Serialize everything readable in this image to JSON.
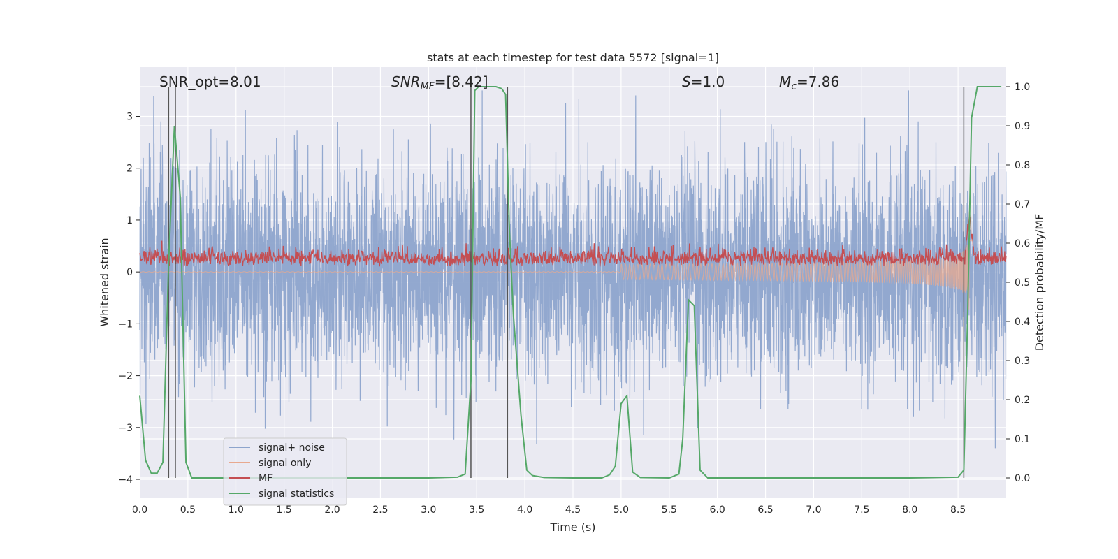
{
  "chart_data": {
    "type": "line",
    "title": "stats at each timestep for test data 5572 [signal=1]",
    "xlabel": "Time (s)",
    "ylabel": "Whitened strain",
    "y2label": "Detection probability/MF",
    "xlim": [
      0,
      9.0
    ],
    "ylim": [
      -4.35,
      3.95
    ],
    "y2lim": [
      -0.05,
      1.05
    ],
    "xticks": [
      0.0,
      0.5,
      1.0,
      1.5,
      2.0,
      2.5,
      3.0,
      3.5,
      4.0,
      4.5,
      5.0,
      5.5,
      6.0,
      6.5,
      7.0,
      7.5,
      8.0,
      8.5
    ],
    "xtick_labels": [
      "0.0",
      "0.5",
      "1.0",
      "1.5",
      "2.0",
      "2.5",
      "3.0",
      "3.5",
      "4.0",
      "4.5",
      "5.0",
      "5.5",
      "6.0",
      "6.5",
      "7.0",
      "7.5",
      "8.0",
      "8.5"
    ],
    "yticks": [
      -4,
      -3,
      -2,
      -1,
      0,
      1,
      2,
      3
    ],
    "ytick_labels": [
      "−4",
      "−3",
      "−2",
      "−1",
      "0",
      "1",
      "2",
      "3"
    ],
    "y2ticks": [
      0.0,
      0.1,
      0.2,
      0.3,
      0.4,
      0.5,
      0.6,
      0.7,
      0.8,
      0.9,
      1.0
    ],
    "y2tick_labels": [
      "0.0",
      "0.1",
      "0.2",
      "0.3",
      "0.4",
      "0.5",
      "0.6",
      "0.7",
      "0.8",
      "0.9",
      "1.0"
    ],
    "grid": true,
    "legend_position": "lower-left",
    "annotations": {
      "snr_opt": "SNR_opt=8.01",
      "snr_mf_main": "SNR",
      "snr_mf_sub": "MF",
      "snr_mf_rest": "=[8.42]",
      "s_main": "S",
      "s_rest": "=1.0",
      "mc_main": "M",
      "mc_sub": "c",
      "mc_rest": "=7.86"
    },
    "series": [
      {
        "name": "signal+ noise",
        "color": "#8da4cc",
        "kind": "noise",
        "amplitude_envelope": [
          -3.4,
          3.5
        ]
      },
      {
        "name": "signal only",
        "color": "#e8a98f",
        "kind": "chirp",
        "t_merge": 8.62,
        "peak": [
          -1.2,
          0.6
        ]
      },
      {
        "name": "MF",
        "color": "#c44e52",
        "kind": "mf",
        "baseline": 0.55,
        "peak_time": 8.62,
        "peak_value": 0.66
      },
      {
        "name": "signal statistics",
        "color": "#55a868",
        "x": [
          0.0,
          0.06,
          0.12,
          0.18,
          0.24,
          0.3,
          0.36,
          0.42,
          0.48,
          0.54,
          0.6,
          1.0,
          2.0,
          3.0,
          3.3,
          3.38,
          3.44,
          3.48,
          3.52,
          3.6,
          3.7,
          3.76,
          3.8,
          3.84,
          3.88,
          3.96,
          4.02,
          4.08,
          4.2,
          4.5,
          4.8,
          4.88,
          4.94,
          5.0,
          5.06,
          5.12,
          5.2,
          5.5,
          5.6,
          5.64,
          5.7,
          5.76,
          5.82,
          5.9,
          6.2,
          7.0,
          8.0,
          8.5,
          8.56,
          8.6,
          8.64,
          8.7,
          8.8,
          8.95
        ],
        "values": [
          0.21,
          0.045,
          0.012,
          0.012,
          0.04,
          0.55,
          0.9,
          0.72,
          0.04,
          0.0,
          0.0,
          0.0,
          0.0,
          0.0,
          0.002,
          0.01,
          0.25,
          0.99,
          1.0,
          1.0,
          1.0,
          0.995,
          0.98,
          0.63,
          0.42,
          0.16,
          0.02,
          0.006,
          0.001,
          0.0,
          0.0,
          0.008,
          0.03,
          0.19,
          0.21,
          0.015,
          0.001,
          0.0,
          0.01,
          0.1,
          0.455,
          0.44,
          0.02,
          0.0,
          0.0,
          0.0,
          0.0,
          0.002,
          0.02,
          0.42,
          0.92,
          1.0,
          1.0,
          1.0
        ]
      }
    ],
    "vlines_x": [
      0.3,
      0.37,
      3.44,
      3.82,
      8.56
    ]
  }
}
